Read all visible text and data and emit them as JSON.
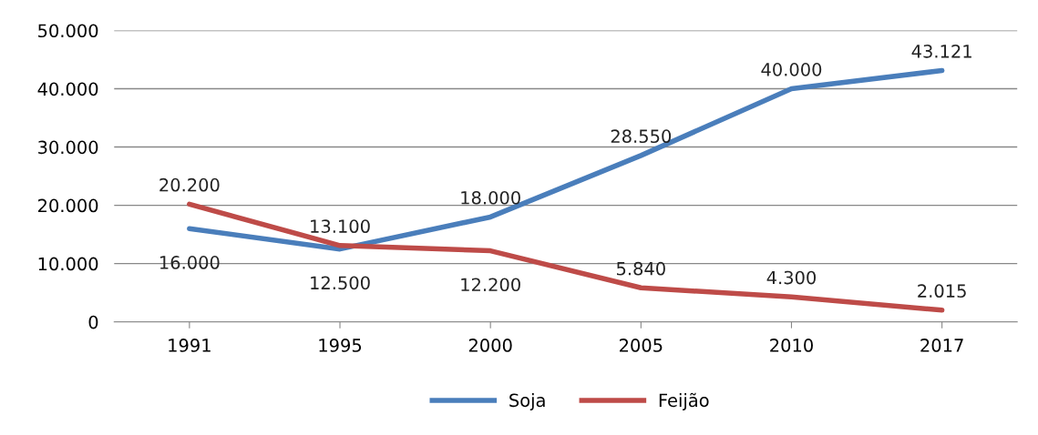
{
  "chart_data": {
    "type": "line",
    "categories": [
      "1991",
      "1995",
      "2000",
      "2005",
      "2010",
      "2017"
    ],
    "series": [
      {
        "name": "Soja",
        "color": "#4a7ebb",
        "values": [
          16000,
          12500,
          18000,
          28550,
          40000,
          43121
        ],
        "value_labels": [
          "16.000",
          "12.500",
          "18.000",
          "28.550",
          "40.000",
          "43.121"
        ]
      },
      {
        "name": "Feijão",
        "color": "#be4b48",
        "values": [
          20200,
          13100,
          12200,
          5840,
          4300,
          2015
        ],
        "value_labels": [
          "20.200",
          "13.100",
          "12.200",
          "5.840",
          "4.300",
          "2.015"
        ]
      }
    ],
    "ylim": [
      0,
      50000
    ],
    "yticks": [
      {
        "value": 0,
        "label": "0"
      },
      {
        "value": 10000,
        "label": "10.000"
      },
      {
        "value": 20000,
        "label": "20.000"
      },
      {
        "value": 30000,
        "label": "30.000"
      },
      {
        "value": 40000,
        "label": "40.000"
      },
      {
        "value": 50000,
        "label": "50.000"
      }
    ],
    "grid": "y",
    "legend": "bottom",
    "marker": "none",
    "line_style": "solid"
  }
}
